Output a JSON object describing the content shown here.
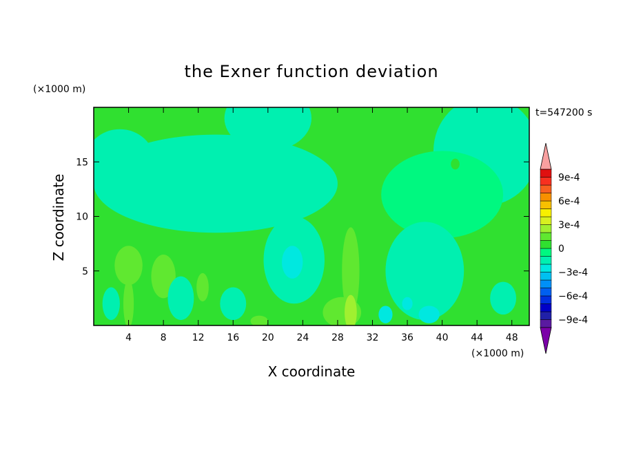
{
  "chart_data": {
    "type": "heatmap",
    "title": "the Exner function deviation",
    "xlabel": "X coordinate",
    "ylabel": "Z coordinate",
    "x_unit": "(×1000 m)",
    "y_unit": "(×1000 m)",
    "time_label": "t=547200 s",
    "xlim": [
      0,
      50
    ],
    "ylim": [
      0,
      20
    ],
    "x_ticks": [
      4,
      8,
      12,
      16,
      20,
      24,
      28,
      32,
      36,
      40,
      44,
      48
    ],
    "y_ticks": [
      5,
      10,
      15
    ],
    "colorbar": {
      "levels": [
        -0.0011,
        -0.001,
        -0.0009,
        -0.0008,
        -0.0007,
        -0.0006,
        -0.0005,
        -0.0004,
        -0.0003,
        -0.0002,
        -0.0001,
        0,
        0.0001,
        0.0002,
        0.0003,
        0.0004,
        0.0005,
        0.0006,
        0.0007,
        0.0008,
        0.0009,
        0.001,
        0.0011
      ],
      "colors": [
        "#7b00a8",
        "#5a1aa0",
        "#2020a8",
        "#0000c8",
        "#0030e0",
        "#0060f0",
        "#0090f8",
        "#00c0f0",
        "#00e8e0",
        "#00f0b0",
        "#00f880",
        "#30e030",
        "#60e830",
        "#a0f030",
        "#d8f020",
        "#f8f000",
        "#f8c000",
        "#f89000",
        "#f86020",
        "#f83020",
        "#e01010",
        "#f8a0a0"
      ],
      "tick_labels": [
        "9e-4",
        "6e-4",
        "3e-4",
        "0",
        "−3e-4",
        "−6e-4",
        "−9e-4"
      ],
      "tick_values": [
        0.0009,
        0.0006,
        0.0003,
        0,
        -0.0003,
        -0.0006,
        -0.0009
      ]
    },
    "fields": {
      "background": 5e-05,
      "regions": [
        {
          "x": 14,
          "z": 13,
          "rx": 14,
          "rz": 4.5,
          "value": -0.00015
        },
        {
          "x": 3,
          "z": 15,
          "rx": 4,
          "rz": 3,
          "value": -0.00012
        },
        {
          "x": 20,
          "z": 19,
          "rx": 5,
          "rz": 3,
          "value": -0.00012
        },
        {
          "x": 45,
          "z": 16,
          "rx": 6,
          "rz": 5,
          "value": -0.00012
        },
        {
          "x": 40,
          "z": 12,
          "rx": 7,
          "rz": 4,
          "value": -0.0001
        },
        {
          "x": 23,
          "z": 6,
          "rx": 3.5,
          "rz": 4,
          "value": -0.00018
        },
        {
          "x": 22.8,
          "z": 5.8,
          "rx": 1.2,
          "rz": 1.5,
          "value": -0.00028
        },
        {
          "x": 38,
          "z": 5,
          "rx": 4.5,
          "rz": 4.5,
          "value": -0.00018
        },
        {
          "x": 38.5,
          "z": 1,
          "rx": 1.2,
          "rz": 0.8,
          "value": -0.00028
        },
        {
          "x": 33.5,
          "z": 1,
          "rx": 0.8,
          "rz": 0.8,
          "value": -0.00028
        },
        {
          "x": 36,
          "z": 2,
          "rx": 0.6,
          "rz": 0.6,
          "value": -0.00028
        },
        {
          "x": 4,
          "z": 5.5,
          "rx": 1.6,
          "rz": 1.8,
          "value": 0.00015
        },
        {
          "x": 4,
          "z": 2,
          "rx": 0.6,
          "rz": 2.2,
          "value": 0.00015
        },
        {
          "x": 8,
          "z": 4.5,
          "rx": 1.4,
          "rz": 2,
          "value": 0.00015
        },
        {
          "x": 12.5,
          "z": 3.5,
          "rx": 0.7,
          "rz": 1.3,
          "value": 0.00015
        },
        {
          "x": 29.5,
          "z": 5,
          "rx": 1,
          "rz": 4,
          "value": 0.00015
        },
        {
          "x": 28.5,
          "z": 1.2,
          "rx": 2.2,
          "rz": 1.4,
          "value": 0.00015
        },
        {
          "x": 29.5,
          "z": 1.2,
          "rx": 0.7,
          "rz": 1.6,
          "value": 0.00025
        },
        {
          "x": 19,
          "z": 0.4,
          "rx": 1,
          "rz": 0.5,
          "value": 0.00015
        },
        {
          "x": 2,
          "z": 2,
          "rx": 1,
          "rz": 1.5,
          "value": -0.00012
        },
        {
          "x": 10,
          "z": 2.5,
          "rx": 1.5,
          "rz": 2,
          "value": -0.00012
        },
        {
          "x": 16,
          "z": 2,
          "rx": 1.5,
          "rz": 1.5,
          "value": -0.00012
        },
        {
          "x": 47,
          "z": 2.5,
          "rx": 1.5,
          "rz": 1.5,
          "value": -0.00012
        },
        {
          "x": 41.5,
          "z": 14.8,
          "rx": 0.5,
          "rz": 0.5,
          "value": 5e-05
        }
      ]
    }
  }
}
